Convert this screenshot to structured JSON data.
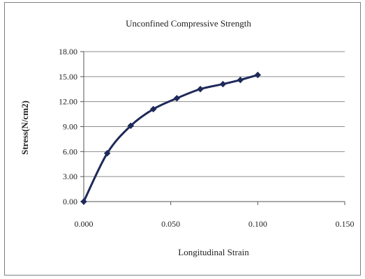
{
  "chart_data": {
    "type": "line",
    "title": "Unconfined Compressive Strength",
    "xlabel": "Longitudinal Strain",
    "ylabel": "Stress(N/cm2)",
    "xlim": [
      0,
      0.15
    ],
    "ylim": [
      0,
      18
    ],
    "x_ticks": [
      "0.000",
      "0.050",
      "0.100",
      "0.150"
    ],
    "y_ticks": [
      "0.00",
      "3.00",
      "6.00",
      "9.00",
      "12.00",
      "15.00",
      "18.00"
    ],
    "grid": "horizontal",
    "legend": "none",
    "marker": "diamond",
    "line_color": "#1f2a5a",
    "series": [
      {
        "x": [
          0.0,
          0.0135,
          0.027,
          0.04,
          0.0535,
          0.067,
          0.08,
          0.09,
          0.1
        ],
        "y": [
          0.0,
          5.8,
          9.1,
          11.1,
          12.4,
          13.5,
          14.1,
          14.6,
          15.2
        ]
      }
    ]
  }
}
